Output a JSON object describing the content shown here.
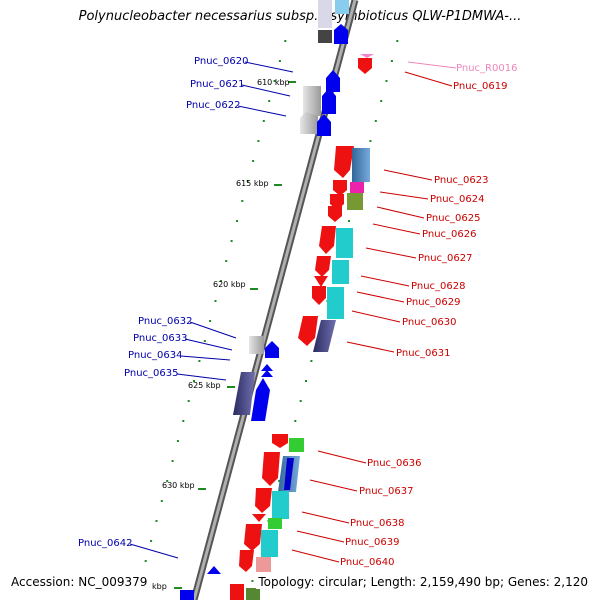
{
  "title": "Polynucleobacter necessarius subsp. asymbioticus QLW-P1DMWA-...",
  "footer": {
    "accession": "Accession: NC_009379",
    "summary": "Topology: circular; Length: 2,159,490 bp; Genes: 2,120"
  },
  "colors": {
    "forward_label": "#0000aa",
    "reverse_label": "#cc0000",
    "rna_label": "#ee88bb",
    "backbone": "#808080",
    "tick": "#228822"
  },
  "kbp_ticks": [
    "610 kbp",
    "615 kbp",
    "620 kbp",
    "625 kbp",
    "630 kbp",
    "kbp"
  ],
  "left_labels": [
    "Pnuc_0620",
    "Pnuc_0621",
    "Pnuc_0622",
    "Pnuc_0632",
    "Pnuc_0633",
    "Pnuc_0634",
    "Pnuc_0635",
    "Pnuc_0642"
  ],
  "right_labels": [
    "Pnuc_R0016",
    "Pnuc_0619",
    "Pnuc_0623",
    "Pnuc_0624",
    "Pnuc_0625",
    "Pnuc_0626",
    "Pnuc_0627",
    "Pnuc_0628",
    "Pnuc_0629",
    "Pnuc_0630",
    "Pnuc_0631",
    "Pnuc_0636",
    "Pnuc_0637",
    "Pnuc_0638",
    "Pnuc_0639",
    "Pnuc_0640"
  ]
}
